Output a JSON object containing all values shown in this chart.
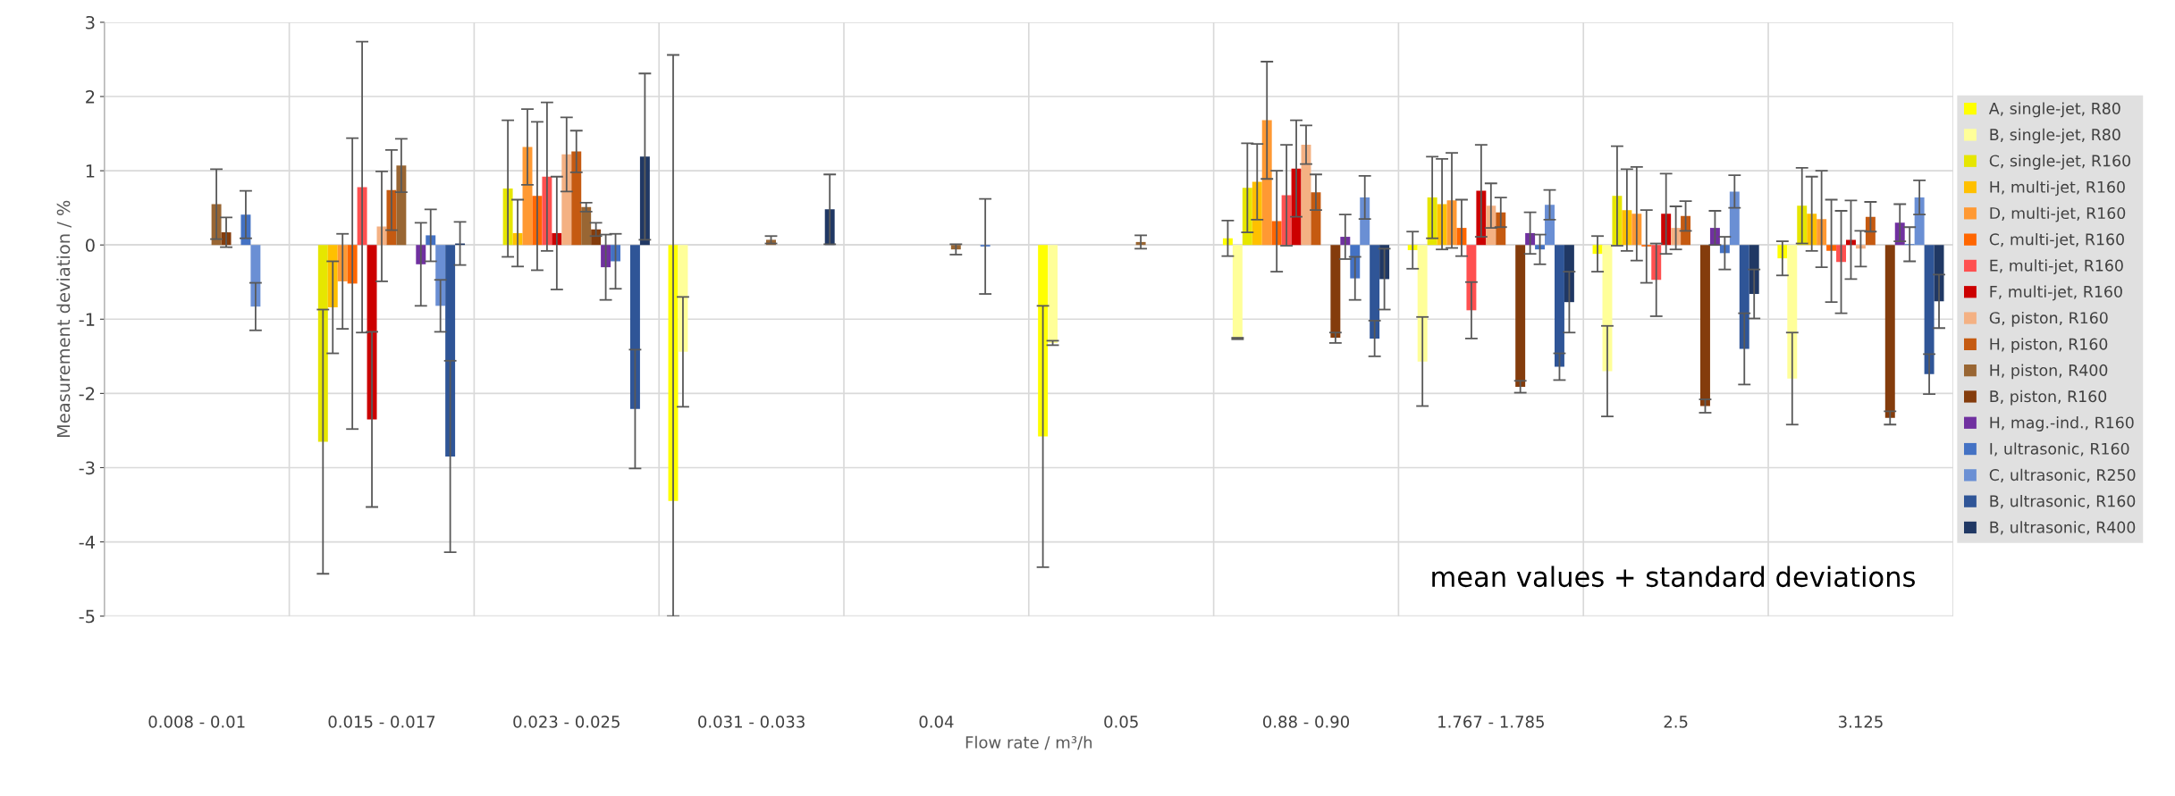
{
  "chart_data": {
    "type": "bar",
    "xlabel": "Flow rate / m³/h",
    "ylabel": "Measurement deviation / %",
    "categories": [
      "0.008 - 0.01",
      "0.015 - 0.017",
      "0.023 - 0.025",
      "0.031 - 0.033",
      "0.04",
      "0.05",
      "0.88 - 0.90",
      "1.767 - 1.785",
      "2.5",
      "3.125"
    ],
    "ylim": [
      -5,
      3
    ],
    "yticks": [
      -5,
      -4,
      -3,
      -2,
      -1,
      0,
      1,
      2,
      3
    ],
    "grid": true,
    "legend": "right",
    "annotations": [
      "mean values + standard deviations"
    ],
    "series": [
      {
        "name": "A, single-jet, R80",
        "color": "#ffff00",
        "values": [
          null,
          null,
          null,
          -3.45,
          null,
          -2.58,
          0.09,
          -0.07,
          -0.12,
          -0.18
        ],
        "errors": [
          null,
          null,
          null,
          [
            -5,
            2.56
          ],
          null,
          1.76,
          0.24,
          0.25,
          0.24,
          0.23
        ]
      },
      {
        "name": "B, single-jet, R80",
        "color": "#ffff99",
        "values": [
          null,
          null,
          null,
          -1.44,
          null,
          -1.32,
          -1.26,
          -1.57,
          -1.7,
          -1.8
        ],
        "errors": [
          null,
          null,
          null,
          0.74,
          null,
          0.03,
          0.01,
          0.6,
          0.61,
          0.62
        ]
      },
      {
        "name": "C, single-jet, R160",
        "color": "#e6e600",
        "values": [
          null,
          -2.65,
          0.76,
          null,
          null,
          null,
          0.77,
          0.64,
          0.66,
          0.53
        ],
        "errors": [
          null,
          1.78,
          0.92,
          null,
          null,
          null,
          0.6,
          0.55,
          0.67,
          0.51
        ]
      },
      {
        "name": "H, multi-jet, R160",
        "color": "#ffc000",
        "values": [
          null,
          -0.84,
          0.16,
          null,
          null,
          null,
          0.85,
          0.55,
          0.47,
          0.42
        ],
        "errors": [
          null,
          0.62,
          0.45,
          null,
          null,
          null,
          0.51,
          0.61,
          0.55,
          0.5
        ]
      },
      {
        "name": "D, multi-jet, R160",
        "color": "#ff9933",
        "values": [
          null,
          -0.49,
          1.32,
          null,
          null,
          null,
          1.68,
          0.6,
          0.42,
          0.35
        ],
        "errors": [
          null,
          0.64,
          0.51,
          null,
          null,
          null,
          0.79,
          0.64,
          0.63,
          0.65
        ]
      },
      {
        "name": "C, multi-jet, R160",
        "color": "#ff6600",
        "values": [
          null,
          -0.52,
          0.66,
          null,
          null,
          null,
          0.32,
          0.23,
          -0.02,
          -0.08
        ],
        "errors": [
          null,
          1.96,
          1.0,
          null,
          null,
          null,
          0.68,
          0.38,
          0.49,
          0.69
        ]
      },
      {
        "name": "E, multi-jet, R160",
        "color": "#ff5050",
        "values": [
          null,
          0.78,
          0.92,
          null,
          null,
          null,
          0.67,
          -0.88,
          -0.47,
          -0.23
        ],
        "errors": [
          null,
          1.96,
          1.0,
          null,
          null,
          null,
          0.68,
          0.38,
          0.49,
          0.69
        ]
      },
      {
        "name": "F, multi-jet, R160",
        "color": "#cc0000",
        "values": [
          null,
          -2.35,
          0.16,
          null,
          null,
          null,
          1.03,
          0.73,
          0.42,
          0.07
        ],
        "errors": [
          null,
          1.18,
          0.76,
          null,
          null,
          null,
          0.65,
          0.62,
          0.54,
          0.53
        ]
      },
      {
        "name": "G, piston, R160",
        "color": "#f4b183",
        "values": [
          null,
          0.25,
          1.22,
          null,
          null,
          null,
          1.35,
          0.53,
          0.23,
          -0.05
        ],
        "errors": [
          null,
          0.74,
          0.5,
          null,
          null,
          null,
          0.26,
          0.3,
          0.29,
          0.24
        ]
      },
      {
        "name": "H, piston, R160",
        "color": "#c55a11",
        "values": [
          null,
          0.74,
          1.26,
          null,
          null,
          null,
          0.71,
          0.44,
          0.39,
          0.38
        ],
        "errors": [
          null,
          0.54,
          0.28,
          null,
          null,
          null,
          0.24,
          0.2,
          0.2,
          0.2
        ]
      },
      {
        "name": "H, piston, R400",
        "color": "#996633",
        "values": [
          0.55,
          1.07,
          0.51,
          0.07,
          -0.06,
          0.04,
          null,
          null,
          null,
          null
        ],
        "errors": [
          0.47,
          0.36,
          0.06,
          0.05,
          0.07,
          0.09,
          null,
          null,
          null,
          null
        ]
      },
      {
        "name": "B, piston, R160",
        "color": "#843c0c",
        "values": [
          0.17,
          null,
          0.21,
          null,
          null,
          null,
          -1.25,
          -1.91,
          -2.17,
          -2.33
        ],
        "errors": [
          0.2,
          null,
          0.09,
          null,
          null,
          null,
          0.07,
          0.08,
          0.09,
          0.09
        ]
      },
      {
        "name": "H, mag.-ind., R160",
        "color": "#7030a0",
        "values": [
          null,
          -0.26,
          -0.3,
          null,
          null,
          null,
          0.11,
          0.16,
          0.23,
          0.3
        ],
        "errors": [
          null,
          0.56,
          0.44,
          null,
          null,
          null,
          0.3,
          0.28,
          0.23,
          0.25
        ]
      },
      {
        "name": "I, ultrasonic, R160",
        "color": "#4472c4",
        "values": [
          0.41,
          0.13,
          -0.22,
          null,
          -0.02,
          null,
          -0.45,
          -0.06,
          -0.11,
          0.01
        ],
        "errors": [
          0.32,
          0.35,
          0.37,
          null,
          0.64,
          null,
          0.29,
          0.2,
          0.22,
          0.23
        ]
      },
      {
        "name": "C, ultrasonic, R250",
        "color": "#6a8fd4",
        "values": [
          -0.83,
          -0.82,
          null,
          null,
          null,
          null,
          0.64,
          0.54,
          0.72,
          0.64
        ],
        "errors": [
          0.32,
          0.35,
          null,
          null,
          null,
          null,
          0.29,
          0.2,
          0.22,
          0.23
        ]
      },
      {
        "name": "B, ultrasonic, R160",
        "color": "#2f5597",
        "values": [
          null,
          -2.85,
          -2.21,
          null,
          null,
          null,
          -1.26,
          -1.64,
          -1.4,
          -1.74
        ],
        "errors": [
          null,
          1.29,
          0.8,
          null,
          null,
          null,
          0.24,
          0.18,
          0.48,
          0.27
        ]
      },
      {
        "name": "B, ultrasonic, R400",
        "color": "#203864",
        "values": [
          null,
          0.02,
          1.19,
          0.48,
          null,
          null,
          -0.46,
          -0.77,
          -0.66,
          -0.76
        ],
        "errors": [
          null,
          0.29,
          1.12,
          0.47,
          null,
          null,
          0.41,
          0.41,
          0.33,
          0.36
        ]
      }
    ]
  }
}
